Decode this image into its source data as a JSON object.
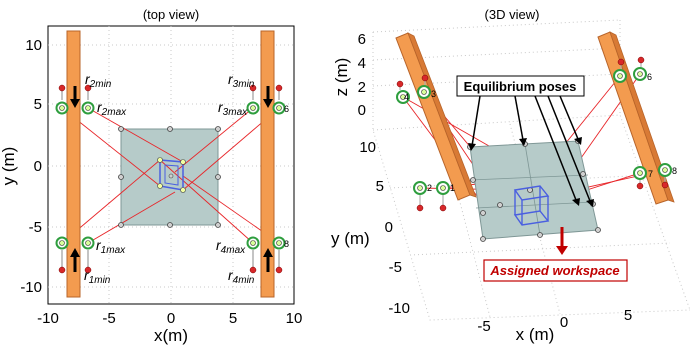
{
  "left_plot": {
    "title": "(top view)",
    "xlabel": "x(m)",
    "ylabel": "y (m)",
    "x_ticks": [
      "-10",
      "-5",
      "0",
      "5",
      "10"
    ],
    "y_ticks": [
      "10",
      "5",
      "0",
      "-5",
      "-10"
    ],
    "cable_labels": {
      "r2min": {
        "main": "r",
        "sub": "2min"
      },
      "r2max": {
        "main": "r",
        "sub": "2max"
      },
      "r3min": {
        "main": "r",
        "sub": "3min"
      },
      "r3max": {
        "main": "r",
        "sub": "3max"
      },
      "r1max": {
        "main": "r",
        "sub": "1max"
      },
      "r1min": {
        "main": "r",
        "sub": "1min"
      },
      "r4max": {
        "main": "r",
        "sub": "4max"
      },
      "r4min": {
        "main": "r",
        "sub": "4min"
      }
    },
    "pulley_numbers": {
      "p6": "6",
      "p8": "8"
    }
  },
  "right_plot": {
    "title": "(3D view)",
    "xlabel": "x (m)",
    "ylabel": "y (m)",
    "zlabel": "z (m)",
    "z_ticks": [
      "6",
      "4",
      "2",
      "0"
    ],
    "y_ticks": [
      "10",
      "5",
      "0",
      "-5",
      "-10"
    ],
    "x_ticks": [
      "-5",
      "0",
      "5"
    ],
    "pulley_numbers": {
      "p3": "3",
      "p6": "6",
      "p7": "7",
      "p8": "8",
      "p1": "1",
      "p2": "2",
      "p4": "4"
    },
    "callout_equilibrium": "Equilibrium poses",
    "callout_workspace": "Assigned workspace"
  },
  "colors": {
    "pillar": "#f39b4f",
    "pillar_edge": "#b8642a",
    "cable": "#e8262a",
    "workspace": "#b6cbc9",
    "platform": "#4a5fe0",
    "pulley_ring": "#2e9e3e",
    "arrow_red": "#c00000"
  }
}
